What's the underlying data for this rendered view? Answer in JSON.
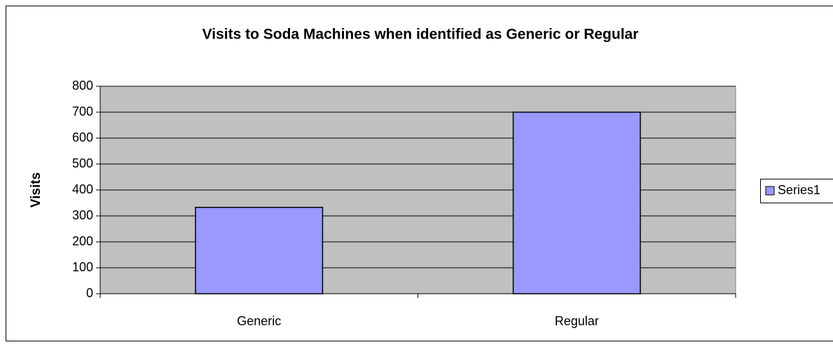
{
  "chart_data": {
    "type": "bar",
    "title": "Visits to Soda Machines when identified as Generic or Regular",
    "y_label": "Visits",
    "categories": [
      "Generic",
      "Regular"
    ],
    "series": [
      {
        "name": "Series1",
        "color": "#9999ff",
        "values": [
          333,
          700
        ]
      }
    ],
    "ylim": [
      0,
      800
    ],
    "yticks": [
      0,
      100,
      200,
      300,
      400,
      500,
      600,
      700,
      800
    ],
    "grid": true,
    "legend": "right"
  }
}
